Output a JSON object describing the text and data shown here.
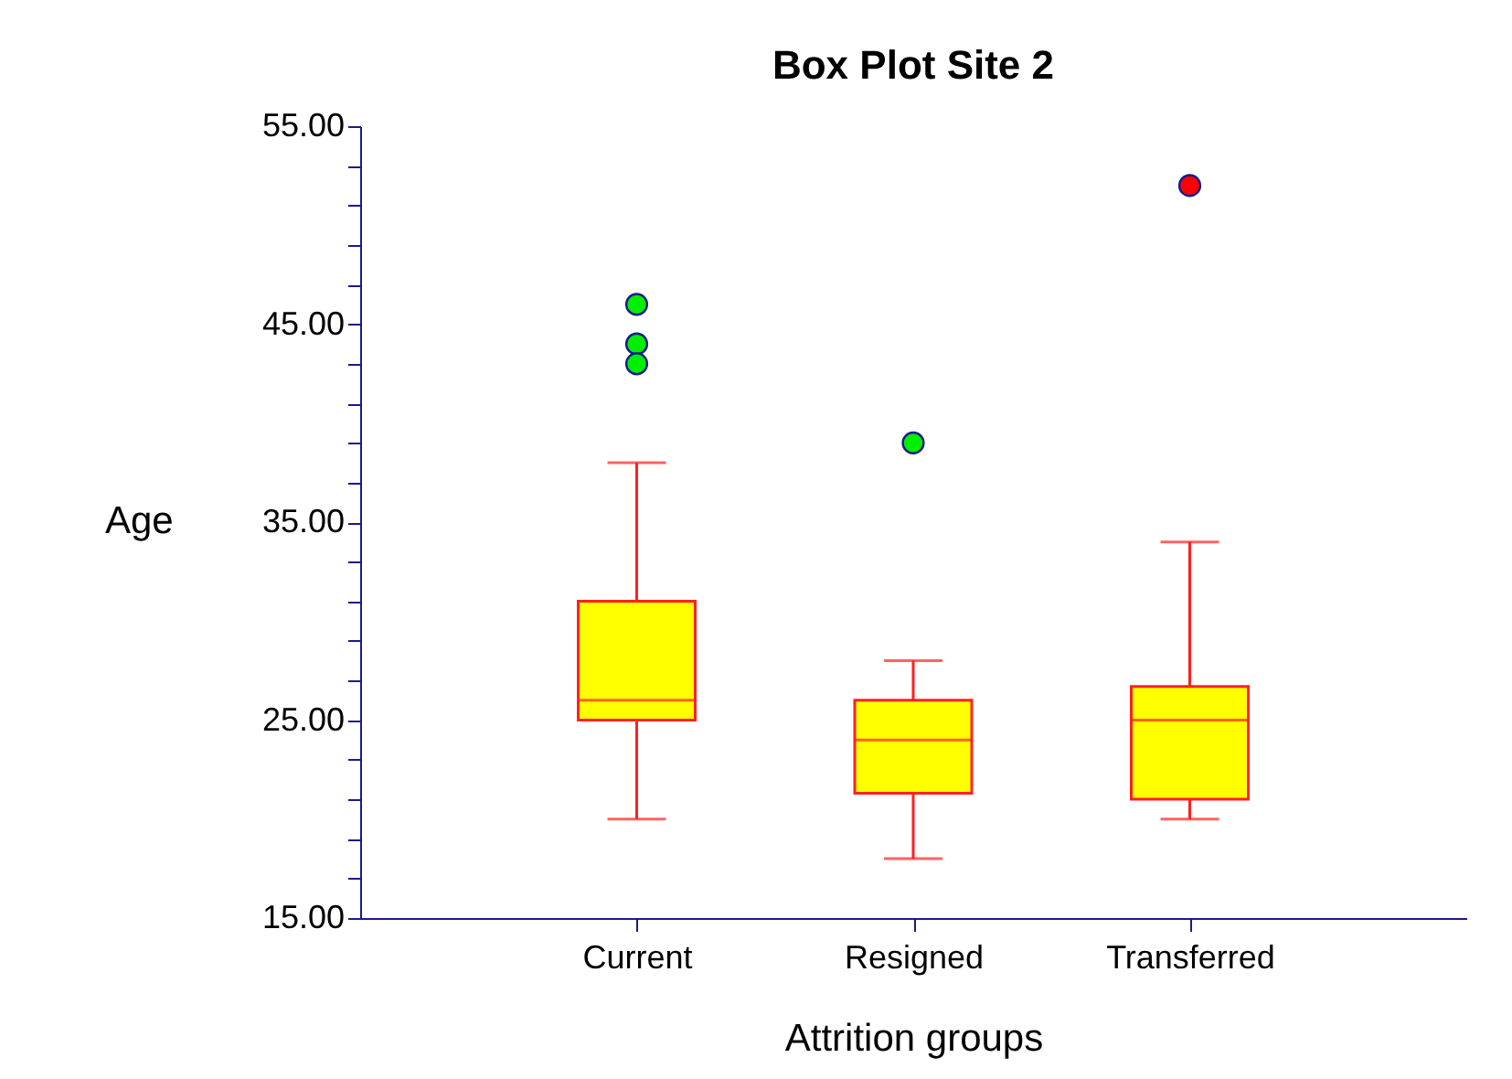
{
  "chart_data": {
    "type": "box",
    "title": "Box Plot Site 2",
    "xlabel": "Attrition groups",
    "ylabel": "Age",
    "categories": [
      "Current",
      "Resigned",
      "Transferred"
    ],
    "ylim": [
      15,
      55
    ],
    "yticks": [
      {
        "value": 15,
        "label": "15.00"
      },
      {
        "value": 17,
        "label": null
      },
      {
        "value": 19,
        "label": null
      },
      {
        "value": 21,
        "label": null
      },
      {
        "value": 23,
        "label": null
      },
      {
        "value": 25,
        "label": "25.00"
      },
      {
        "value": 27,
        "label": null
      },
      {
        "value": 29,
        "label": null
      },
      {
        "value": 31,
        "label": null
      },
      {
        "value": 33,
        "label": null
      },
      {
        "value": 35,
        "label": "35.00"
      },
      {
        "value": 37,
        "label": null
      },
      {
        "value": 39,
        "label": null
      },
      {
        "value": 41,
        "label": null
      },
      {
        "value": 43,
        "label": null
      },
      {
        "value": 45,
        "label": "45.00"
      },
      {
        "value": 47,
        "label": null
      },
      {
        "value": 49,
        "label": null
      },
      {
        "value": 51,
        "label": null
      },
      {
        "value": 53,
        "label": null
      },
      {
        "value": 55,
        "label": "55.00"
      }
    ],
    "grid": false,
    "series": [
      {
        "color": "#ff2020",
        "colors": [
          "#ffff00",
          "#ffff00",
          "#ffff00"
        ],
        "boxes": [
          {
            "low": 20,
            "q1": 25,
            "median": 26,
            "q3": 31,
            "high": 38
          },
          {
            "low": 18,
            "q1": 21.3,
            "median": 24,
            "q3": 26,
            "high": 28
          },
          {
            "low": 20,
            "q1": 21,
            "median": 25,
            "q3": 26.7,
            "high": 34
          }
        ]
      },
      {
        "type": "scatter",
        "marker": "circle",
        "x": [
          "Current",
          "Current",
          "Current",
          "Resigned",
          "Transferred"
        ],
        "values": [
          46,
          44,
          43,
          39,
          52
        ],
        "colors": [
          "#00ee00",
          "#00ee00",
          "#00ee00",
          "#00ee00",
          "#ff0000"
        ]
      }
    ]
  }
}
